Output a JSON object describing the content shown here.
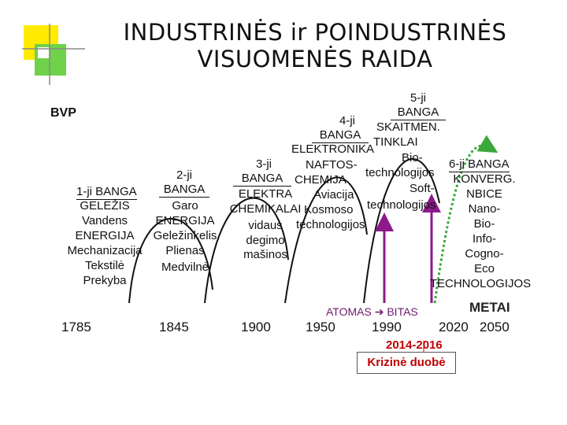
{
  "title_line1": "INDUSTRINĖS ir POINDUSTRINĖS",
  "title_line2": "VISUOMENĖS RAIDA",
  "y_axis_label": "BVP",
  "waves": [
    {
      "name": "1-ji BANGA",
      "items": [
        "GELEŽIS",
        "Vandens",
        "ENERGIJA",
        "Mechanizacija",
        "Tekstilė",
        "Prekyba"
      ]
    },
    {
      "name_lines": [
        "2-ji",
        "BANGA"
      ],
      "items": [
        "Garo",
        "ENERGIJA",
        "Geležinkelis",
        "Plienas",
        "Medvilnė"
      ]
    },
    {
      "name_lines": [
        "3-ji",
        "BANGA"
      ],
      "items": [
        "ELEKTRA",
        "CHEMIKALAI",
        "vidaus",
        "degimo",
        "mašinos"
      ]
    },
    {
      "name_lines": [
        "4-ji",
        "BANGA"
      ],
      "items": [
        "ELEKTRONIKA",
        "NAFTOS-",
        "CHEMIJA",
        "Aviacija",
        "Kosmoso",
        "technologijos"
      ]
    },
    {
      "name_lines": [
        "5-ji",
        "BANGA"
      ],
      "items": [
        "SKAITMEN.",
        "TINKLAI",
        "Bio-",
        "technologijos",
        "Soft-",
        "technologijos"
      ]
    },
    {
      "name": "6-ji BANGA",
      "items": [
        "KONVERG.",
        "NBICE",
        "Nano-",
        "Bio-",
        "Info-",
        "Cogno-",
        "Eco",
        "TECHNOLOGIJOS"
      ]
    }
  ],
  "years": [
    "1785",
    "1845",
    "1900",
    "1950",
    "1990",
    "2020",
    "2050"
  ],
  "x_axis_label": "METAI",
  "atom_label": "ATOMAS",
  "bit_label": "BITAS",
  "crisis_years": "2014-2016",
  "crisis_label": "Krizinė duobė",
  "colors": {
    "curve": "#111111",
    "sixth_wave": "#3aa83a",
    "transition_arrow": "#8b1a8b",
    "crisis": "#c00000",
    "deco_yellow": "#ffea00",
    "deco_green": "#6fd24a",
    "deco_line": "#8a8a8a"
  }
}
